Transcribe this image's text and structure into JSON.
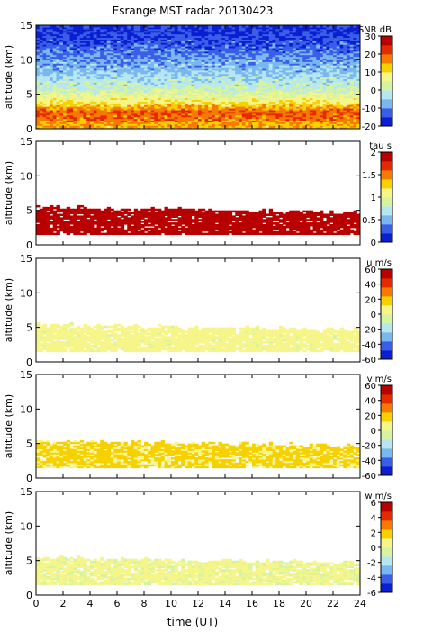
{
  "figure": {
    "title": "Esrange MST radar 20130423",
    "xlabel": "time (UT)"
  },
  "chart_data": [
    {
      "type": "heatmap",
      "quantity": "snr",
      "ylabel": "altitude (km)",
      "colorbar_label": "SNR dB",
      "xlim": [
        0,
        24
      ],
      "ylim": [
        0,
        15
      ],
      "xticks": [
        0,
        2,
        4,
        6,
        8,
        10,
        12,
        14,
        16,
        18,
        20,
        22,
        24
      ],
      "yticks": [
        0,
        5,
        10,
        15
      ],
      "clim": [
        -20,
        30
      ],
      "cticks": [
        -20,
        -10,
        0,
        10,
        20,
        30
      ],
      "colormap": [
        "#0b1fd1",
        "#3a5ee8",
        "#79b8ee",
        "#b6e7f0",
        "#d6f3a0",
        "#f5f58a",
        "#f7d000",
        "#f77a00",
        "#e52a00",
        "#b80000"
      ],
      "profile": [
        {
          "altitude": 0.5,
          "value": 14
        },
        {
          "altitude": 1.5,
          "value": 18
        },
        {
          "altitude": 2.5,
          "value": 20
        },
        {
          "altitude": 3.5,
          "value": 12
        },
        {
          "altitude": 4.5,
          "value": 6
        },
        {
          "altitude": 6,
          "value": 0
        },
        {
          "altitude": 8,
          "value": -5
        },
        {
          "altitude": 10,
          "value": -9
        },
        {
          "altitude": 12,
          "value": -13
        },
        {
          "altitude": 14,
          "value": -16
        }
      ]
    },
    {
      "type": "heatmap",
      "quantity": "tau",
      "ylabel": "altitude (km)",
      "colorbar_label": "tau s",
      "xlim": [
        0,
        24
      ],
      "ylim": [
        0,
        15
      ],
      "xticks": [
        0,
        2,
        4,
        6,
        8,
        10,
        12,
        14,
        16,
        18,
        20,
        22,
        24
      ],
      "yticks": [
        0,
        5,
        10,
        15
      ],
      "clim": [
        0,
        2
      ],
      "cticks": [
        0,
        0.5,
        1,
        1.5,
        2
      ],
      "colormap": [
        "#0b1fd1",
        "#3a5ee8",
        "#79b8ee",
        "#b6e7f0",
        "#d6f3a0",
        "#f5f58a",
        "#f7d000",
        "#f77a00",
        "#e52a00",
        "#b80000"
      ],
      "value_range_shown": [
        1.8,
        2.0
      ],
      "data_extent": {
        "altitude": [
          1.5,
          5.5
        ],
        "time": [
          0,
          24
        ]
      }
    },
    {
      "type": "heatmap",
      "quantity": "u",
      "ylabel": "altitude (km)",
      "colorbar_label": "u m/s",
      "xlim": [
        0,
        24
      ],
      "ylim": [
        0,
        15
      ],
      "xticks": [
        0,
        2,
        4,
        6,
        8,
        10,
        12,
        14,
        16,
        18,
        20,
        22,
        24
      ],
      "yticks": [
        0,
        5,
        10,
        15
      ],
      "clim": [
        -60,
        60
      ],
      "cticks": [
        -60,
        -40,
        -20,
        0,
        20,
        40,
        60
      ],
      "colormap": [
        "#0b1fd1",
        "#3a5ee8",
        "#79b8ee",
        "#b6e7f0",
        "#d6f3a0",
        "#f5f58a",
        "#f7d000",
        "#f77a00",
        "#e52a00",
        "#b80000"
      ],
      "typical_value": 5,
      "data_extent": {
        "altitude": [
          1.5,
          5.5
        ],
        "time": [
          0,
          24
        ]
      }
    },
    {
      "type": "heatmap",
      "quantity": "v",
      "ylabel": "altitude (km)",
      "colorbar_label": "v m/s",
      "xlim": [
        0,
        24
      ],
      "ylim": [
        0,
        15
      ],
      "xticks": [
        0,
        2,
        4,
        6,
        8,
        10,
        12,
        14,
        16,
        18,
        20,
        22,
        24
      ],
      "yticks": [
        0,
        5,
        10,
        15
      ],
      "clim": [
        -60,
        60
      ],
      "cticks": [
        -60,
        -40,
        -20,
        0,
        20,
        40,
        60
      ],
      "colormap": [
        "#0b1fd1",
        "#3a5ee8",
        "#79b8ee",
        "#b6e7f0",
        "#d6f3a0",
        "#f5f58a",
        "#f7d000",
        "#f77a00",
        "#e52a00",
        "#b80000"
      ],
      "typical_value": 15,
      "data_extent": {
        "altitude": [
          1.5,
          5.5
        ],
        "time": [
          0,
          24
        ]
      }
    },
    {
      "type": "heatmap",
      "quantity": "w",
      "ylabel": "altitude (km)",
      "colorbar_label": "w m/s",
      "xlim": [
        0,
        24
      ],
      "ylim": [
        0,
        15
      ],
      "xticks": [
        0,
        2,
        4,
        6,
        8,
        10,
        12,
        14,
        16,
        18,
        20,
        22,
        24
      ],
      "yticks": [
        0,
        5,
        10,
        15
      ],
      "clim": [
        -6,
        6
      ],
      "cticks": [
        -6,
        -4,
        -2,
        0,
        2,
        4,
        6
      ],
      "colormap": [
        "#0b1fd1",
        "#3a5ee8",
        "#79b8ee",
        "#b6e7f0",
        "#d6f3a0",
        "#f5f58a",
        "#f7d000",
        "#f77a00",
        "#e52a00",
        "#b80000"
      ],
      "typical_value": 0.3,
      "data_extent": {
        "altitude": [
          1.5,
          5.5
        ],
        "time": [
          0,
          24
        ]
      }
    }
  ]
}
